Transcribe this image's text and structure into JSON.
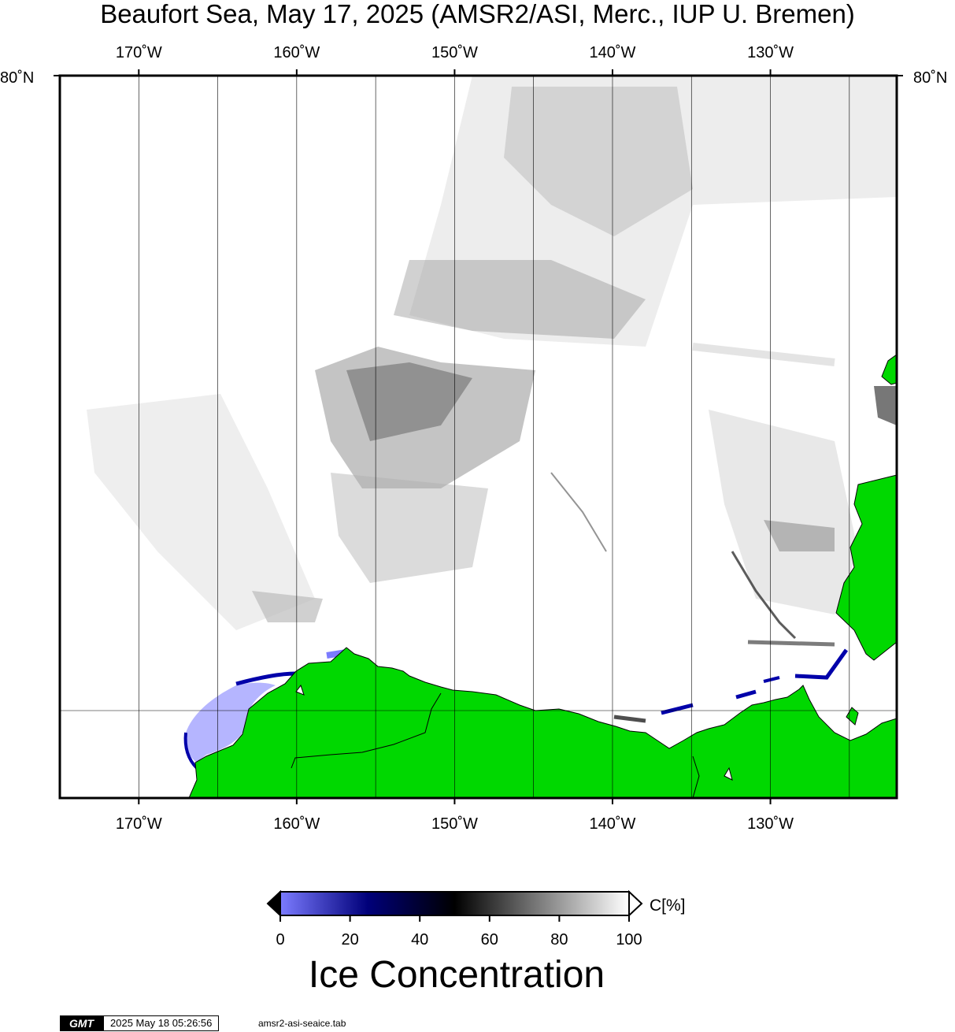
{
  "title": "Beaufort Sea, May 17, 2025 (AMSR2/ASI, Merc., IUP U. Bremen)",
  "map": {
    "lon_range": [
      -175,
      -122
    ],
    "lon_ticks": [
      {
        "lon": -170,
        "label": "170˚W"
      },
      {
        "lon": -160,
        "label": "160˚W"
      },
      {
        "lon": -150,
        "label": "150˚W"
      },
      {
        "lon": -140,
        "label": "140˚W"
      },
      {
        "lon": -130,
        "label": "130˚W"
      }
    ],
    "lat_label_left": "80˚N",
    "lat_label_right": "80˚N",
    "colors": {
      "land": "#00d800",
      "coastline": "#000000",
      "ocean": "#ffffff",
      "frame": "#000000",
      "gridline": "#000000"
    }
  },
  "colorbar": {
    "label": "Ice Concentration",
    "unit": "C[%]",
    "ticks": [
      "0",
      "20",
      "40",
      "60",
      "80",
      "100"
    ],
    "range": [
      0,
      100
    ],
    "colors": [
      "#7b7bff",
      "#00007a",
      "#000000",
      "#ffffff"
    ]
  },
  "footer": {
    "logo": "GMT",
    "timestamp": "2025 May 18 05:26:56",
    "file": "amsr2-asi-seaice.tab"
  }
}
